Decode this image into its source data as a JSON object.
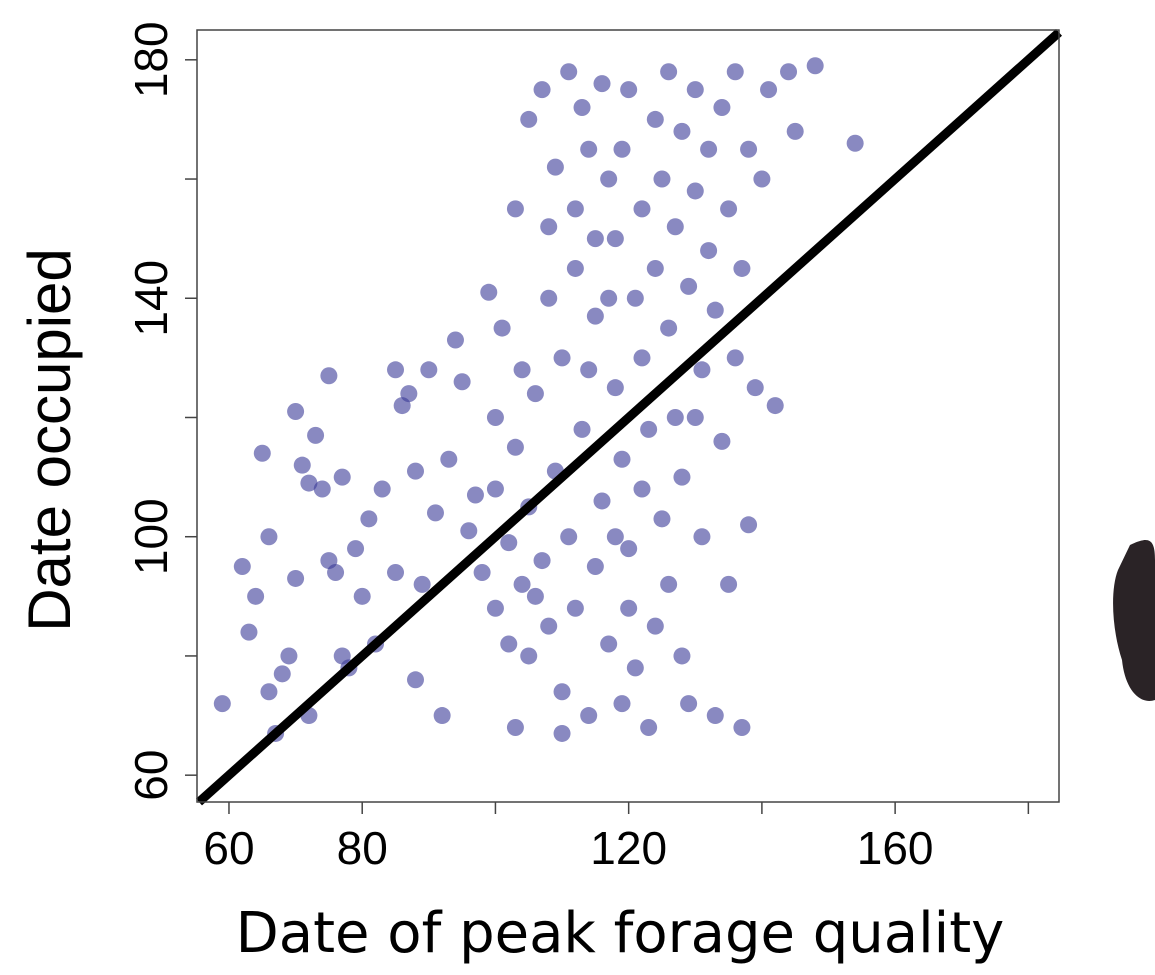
{
  "chart_data": {
    "type": "scatter",
    "x_label": "Date of peak forage quality",
    "y_label": "Date occupied",
    "color": "#3b3b98",
    "xlim": [
      55.2,
      184.6
    ],
    "ylim": [
      55.5,
      185
    ],
    "xticks": [
      60,
      80,
      120,
      160
    ],
    "x_minor_ticks": [
      100,
      140,
      180
    ],
    "yticks": [
      60,
      100,
      140,
      180
    ],
    "y_minor_ticks": [
      80,
      120,
      160
    ],
    "identity_line": true,
    "x": [
      59,
      62,
      63,
      64,
      65,
      66,
      66,
      67,
      68,
      69,
      70,
      70,
      71,
      72,
      72,
      73,
      74,
      75,
      75,
      76,
      77,
      77,
      78,
      79,
      80,
      81,
      82,
      83,
      85,
      85,
      86,
      87,
      88,
      88,
      89,
      90,
      91,
      92,
      93,
      94,
      95,
      96,
      97,
      98,
      99,
      100,
      100,
      101,
      102,
      103,
      103,
      104,
      105,
      105,
      106,
      107,
      108,
      108,
      109,
      110,
      110,
      111,
      112,
      112,
      113,
      114,
      114,
      115,
      115,
      116,
      117,
      117,
      118,
      118,
      119,
      119,
      120,
      120,
      121,
      121,
      122,
      122,
      123,
      123,
      124,
      124,
      125,
      125,
      126,
      126,
      127,
      127,
      128,
      128,
      129,
      129,
      130,
      130,
      131,
      131,
      132,
      132,
      133,
      133,
      134,
      134,
      135,
      135,
      136,
      136,
      137,
      137,
      138,
      138,
      139,
      140,
      141,
      142,
      144,
      145,
      148,
      154,
      100,
      102,
      104,
      106,
      108,
      110,
      112,
      114,
      116,
      118,
      120,
      122,
      124,
      126,
      128,
      130,
      103,
      105,
      107,
      109,
      111,
      113,
      115,
      117,
      119
    ],
    "y": [
      72,
      95,
      84,
      90,
      114,
      100,
      74,
      67,
      77,
      80,
      93,
      121,
      112,
      109,
      70,
      117,
      108,
      127,
      96,
      94,
      110,
      80,
      78,
      98,
      90,
      103,
      82,
      108,
      128,
      94,
      122,
      124,
      111,
      76,
      92,
      128,
      104,
      70,
      113,
      133,
      126,
      101,
      107,
      94,
      141,
      120,
      88,
      135,
      99,
      115,
      68,
      92,
      105,
      80,
      124,
      96,
      152,
      85,
      111,
      130,
      74,
      100,
      145,
      88,
      118,
      165,
      70,
      137,
      95,
      106,
      160,
      82,
      125,
      150,
      113,
      72,
      175,
      98,
      140,
      78,
      155,
      130,
      118,
      68,
      170,
      145,
      160,
      103,
      178,
      135,
      152,
      120,
      168,
      110,
      142,
      72,
      175,
      158,
      128,
      100,
      165,
      148,
      138,
      70,
      172,
      116,
      155,
      92,
      178,
      130,
      145,
      68,
      165,
      102,
      125,
      160,
      175,
      122,
      178,
      168,
      179,
      166,
      108,
      82,
      128,
      90,
      140,
      67,
      155,
      128,
      176,
      100,
      88,
      108,
      85,
      92,
      80,
      120,
      155,
      170,
      175,
      162,
      178,
      172,
      150,
      140,
      165
    ]
  }
}
